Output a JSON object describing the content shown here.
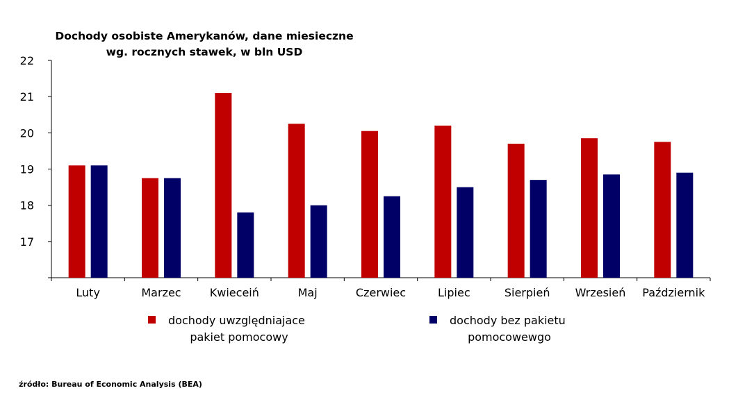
{
  "chart_data": {
    "type": "bar",
    "title_lines": [
      "Dochody osobiste Amerykanów, dane miesieczne",
      "wg. rocznych stawek, w bln USD"
    ],
    "categories": [
      "Luty",
      "Marzec",
      "Kwieceiń",
      "Maj",
      "Czerwiec",
      "Lipiec",
      "Sierpień",
      "Wrzesień",
      "Październik"
    ],
    "series": [
      {
        "name_lines": [
          "dochody uwzględniajace",
          "pakiet pomocowy"
        ],
        "color": "#c00000",
        "values": [
          19.1,
          18.75,
          21.1,
          20.25,
          20.05,
          20.2,
          19.7,
          19.85,
          19.75
        ]
      },
      {
        "name_lines": [
          "dochody bez pakietu",
          "pomocowewgo"
        ],
        "color": "#000066",
        "values": [
          19.1,
          18.75,
          17.8,
          18.0,
          18.25,
          18.5,
          18.7,
          18.85,
          18.9
        ]
      }
    ],
    "y_ticks": [
      "17",
      "18",
      "19",
      "20",
      "21",
      "22"
    ],
    "ylim": [
      16,
      22
    ],
    "grid": false,
    "legend_position": "bottom"
  },
  "source": "źródło: Bureau of Economic Analysis (BEA)"
}
